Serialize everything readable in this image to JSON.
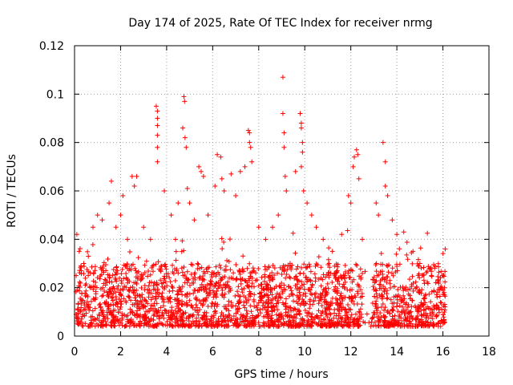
{
  "chart_data": {
    "type": "scatter",
    "title": "Day 174 of 2025, Rate Of TEC Index for receiver nrmg",
    "xlabel": "GPS time / hours",
    "ylabel": "ROTI / TECUs",
    "xlim": [
      0,
      18
    ],
    "ylim": [
      0,
      0.12
    ],
    "x_ticks": [
      0,
      2,
      4,
      6,
      8,
      10,
      12,
      14,
      16,
      18
    ],
    "x_tick_labels": [
      "0",
      "2",
      "4",
      "6",
      "8",
      "10",
      "12",
      "14",
      "16",
      "18"
    ],
    "y_ticks": [
      0,
      0.02,
      0.04,
      0.06,
      0.08,
      0.1,
      0.12
    ],
    "y_tick_labels": [
      "0",
      "0.02",
      "0.04",
      "0.06",
      "0.08",
      "0.1",
      "0.12"
    ],
    "grid": true,
    "marker": "+",
    "color": "#ff0000",
    "data_range_hours": [
      0.05,
      16.1
    ],
    "series": [
      {
        "name": "ROTI",
        "description": "dense scatter; typical band 0.003-0.03 TECU/min",
        "points": [
          [
            0.1,
            0.042
          ],
          [
            0.2,
            0.035
          ],
          [
            0.4,
            0.03
          ],
          [
            0.6,
            0.033
          ],
          [
            0.8,
            0.045
          ],
          [
            1.0,
            0.05
          ],
          [
            1.2,
            0.048
          ],
          [
            1.5,
            0.055
          ],
          [
            1.6,
            0.064
          ],
          [
            1.8,
            0.045
          ],
          [
            2.0,
            0.05
          ],
          [
            2.1,
            0.058
          ],
          [
            2.3,
            0.04
          ],
          [
            2.5,
            0.066
          ],
          [
            2.6,
            0.062
          ],
          [
            2.7,
            0.066
          ],
          [
            3.0,
            0.045
          ],
          [
            3.3,
            0.04
          ],
          [
            3.55,
            0.095
          ],
          [
            3.6,
            0.093
          ],
          [
            3.6,
            0.09
          ],
          [
            3.6,
            0.087
          ],
          [
            3.6,
            0.083
          ],
          [
            3.6,
            0.078
          ],
          [
            3.6,
            0.072
          ],
          [
            3.9,
            0.06
          ],
          [
            4.2,
            0.05
          ],
          [
            4.5,
            0.055
          ],
          [
            4.75,
            0.099
          ],
          [
            4.78,
            0.097
          ],
          [
            4.7,
            0.086
          ],
          [
            4.8,
            0.082
          ],
          [
            4.85,
            0.078
          ],
          [
            4.9,
            0.061
          ],
          [
            5.0,
            0.055
          ],
          [
            5.2,
            0.048
          ],
          [
            5.4,
            0.07
          ],
          [
            5.5,
            0.068
          ],
          [
            5.6,
            0.066
          ],
          [
            5.8,
            0.05
          ],
          [
            6.1,
            0.062
          ],
          [
            6.2,
            0.075
          ],
          [
            6.35,
            0.074
          ],
          [
            6.4,
            0.065
          ],
          [
            6.5,
            0.06
          ],
          [
            6.8,
            0.067
          ],
          [
            7.0,
            0.058
          ],
          [
            7.2,
            0.068
          ],
          [
            7.4,
            0.07
          ],
          [
            7.55,
            0.085
          ],
          [
            7.6,
            0.084
          ],
          [
            7.6,
            0.08
          ],
          [
            7.65,
            0.078
          ],
          [
            7.7,
            0.072
          ],
          [
            8.0,
            0.045
          ],
          [
            8.3,
            0.04
          ],
          [
            8.6,
            0.045
          ],
          [
            8.85,
            0.05
          ],
          [
            9.05,
            0.107
          ],
          [
            9.05,
            0.092
          ],
          [
            9.1,
            0.084
          ],
          [
            9.1,
            0.078
          ],
          [
            9.15,
            0.066
          ],
          [
            9.2,
            0.06
          ],
          [
            9.6,
            0.068
          ],
          [
            9.8,
            0.092
          ],
          [
            9.85,
            0.088
          ],
          [
            9.85,
            0.086
          ],
          [
            9.9,
            0.08
          ],
          [
            9.9,
            0.076
          ],
          [
            9.85,
            0.07
          ],
          [
            9.95,
            0.06
          ],
          [
            10.1,
            0.055
          ],
          [
            10.3,
            0.05
          ],
          [
            10.5,
            0.045
          ],
          [
            10.8,
            0.04
          ],
          [
            11.2,
            0.035
          ],
          [
            11.6,
            0.042
          ],
          [
            11.9,
            0.058
          ],
          [
            12.0,
            0.055
          ],
          [
            12.1,
            0.07
          ],
          [
            12.15,
            0.074
          ],
          [
            12.25,
            0.077
          ],
          [
            12.3,
            0.075
          ],
          [
            12.35,
            0.065
          ],
          [
            12.5,
            0.04
          ],
          [
            13.1,
            0.055
          ],
          [
            13.2,
            0.05
          ],
          [
            13.4,
            0.08
          ],
          [
            13.5,
            0.072
          ],
          [
            13.5,
            0.062
          ],
          [
            13.6,
            0.058
          ],
          [
            13.8,
            0.048
          ],
          [
            14.0,
            0.042
          ],
          [
            14.3,
            0.043
          ],
          [
            14.7,
            0.035
          ],
          [
            15.0,
            0.03
          ],
          [
            15.5,
            0.025
          ],
          [
            15.9,
            0.02
          ],
          [
            16.05,
            0.018
          ]
        ]
      }
    ]
  }
}
